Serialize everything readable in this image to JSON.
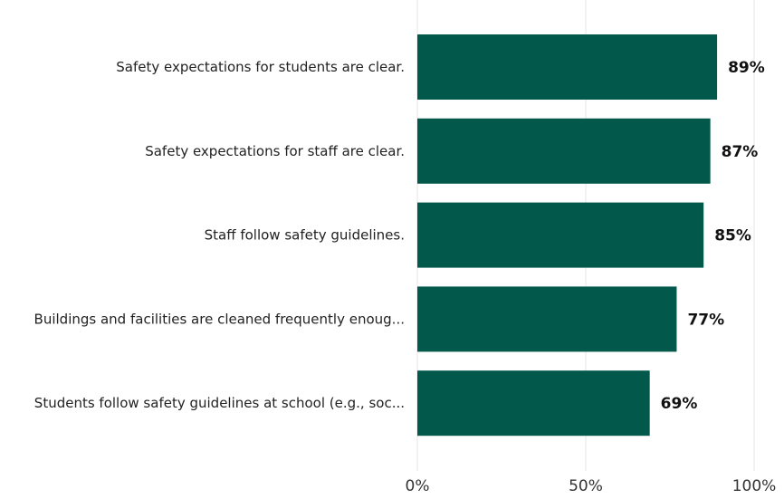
{
  "chart_data": {
    "type": "bar",
    "orientation": "horizontal",
    "categories": [
      "Safety expectations for students are clear.",
      "Safety expectations for staff are clear.",
      "Staff follow safety guidelines.",
      "Buildings and facilities are cleaned frequently enoug...",
      "Students follow safety guidelines at school (e.g., soc..."
    ],
    "values": [
      89,
      87,
      85,
      77,
      69
    ],
    "value_labels": [
      "89%",
      "87%",
      "85%",
      "77%",
      "69%"
    ],
    "xlim": [
      0,
      100
    ],
    "x_ticks": [
      0,
      50,
      100
    ],
    "x_tick_labels": [
      "0%",
      "50%",
      "100%"
    ],
    "grid": "vertical",
    "bar_color": "#02584a",
    "title": "",
    "xlabel": "",
    "ylabel": ""
  }
}
